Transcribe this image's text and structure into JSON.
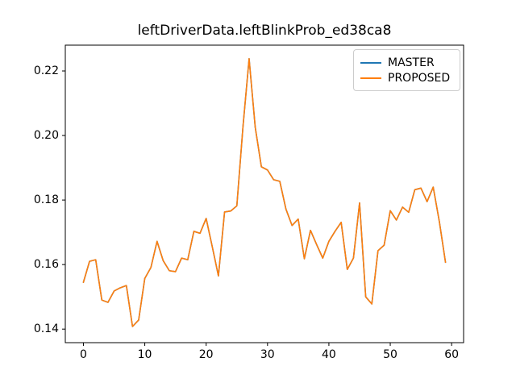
{
  "figure": {
    "background": "#ffffff",
    "axes_color": "#000000"
  },
  "chart_data": {
    "type": "line",
    "title": "leftDriverData.leftBlinkProb_ed38ca8",
    "xlabel": "",
    "ylabel": "",
    "grid": false,
    "legend_position": "upper right",
    "xlim": [
      -2.95,
      61.95
    ],
    "ylim": [
      0.1358,
      0.228
    ],
    "xticks": [
      0,
      10,
      20,
      30,
      40,
      50,
      60
    ],
    "yticks": [
      0.14,
      0.16,
      0.18,
      0.2,
      0.22
    ],
    "ytick_labels": [
      "0.14",
      "0.16",
      "0.18",
      "0.20",
      "0.22"
    ],
    "x": [
      0,
      1,
      2,
      3,
      4,
      5,
      6,
      7,
      8,
      9,
      10,
      11,
      12,
      13,
      14,
      15,
      16,
      17,
      18,
      19,
      20,
      21,
      22,
      23,
      24,
      25,
      26,
      27,
      28,
      29,
      30,
      31,
      32,
      33,
      34,
      35,
      36,
      37,
      38,
      39,
      40,
      41,
      42,
      43,
      44,
      45,
      46,
      47,
      48,
      49,
      50,
      51,
      52,
      53,
      54,
      55,
      56,
      57,
      58,
      59
    ],
    "series": [
      {
        "name": "MASTER",
        "color": "#1f77b4",
        "values": [
          0.1545,
          0.161,
          0.1615,
          0.149,
          0.1483,
          0.1518,
          0.1528,
          0.1535,
          0.1408,
          0.1428,
          0.1557,
          0.1591,
          0.1672,
          0.1612,
          0.1581,
          0.1578,
          0.162,
          0.1615,
          0.1703,
          0.1697,
          0.1743,
          0.1655,
          0.1565,
          0.1763,
          0.1766,
          0.1782,
          0.2027,
          0.2238,
          0.2025,
          0.1903,
          0.1893,
          0.1863,
          0.1858,
          0.1772,
          0.1721,
          0.1741,
          0.1618,
          0.1706,
          0.1662,
          0.162,
          0.1672,
          0.1703,
          0.1731,
          0.1585,
          0.162,
          0.1791,
          0.15,
          0.1478,
          0.1643,
          0.166,
          0.1767,
          0.1738,
          0.1778,
          0.1762,
          0.1832,
          0.1837,
          0.1795,
          0.184,
          0.1733,
          0.1607
        ]
      },
      {
        "name": "PROPOSED",
        "color": "#ff7f0e",
        "values": [
          0.1545,
          0.161,
          0.1615,
          0.149,
          0.1483,
          0.1518,
          0.1528,
          0.1535,
          0.1408,
          0.1428,
          0.1557,
          0.1591,
          0.1672,
          0.1612,
          0.1581,
          0.1578,
          0.162,
          0.1615,
          0.1703,
          0.1697,
          0.1743,
          0.1655,
          0.1565,
          0.1763,
          0.1766,
          0.1782,
          0.2027,
          0.2238,
          0.2025,
          0.1903,
          0.1893,
          0.1863,
          0.1858,
          0.1772,
          0.1721,
          0.1741,
          0.1618,
          0.1706,
          0.1662,
          0.162,
          0.1672,
          0.1703,
          0.1731,
          0.1585,
          0.162,
          0.1791,
          0.15,
          0.1478,
          0.1643,
          0.166,
          0.1767,
          0.1738,
          0.1778,
          0.1762,
          0.1832,
          0.1837,
          0.1795,
          0.184,
          0.1733,
          0.1607
        ]
      }
    ]
  }
}
